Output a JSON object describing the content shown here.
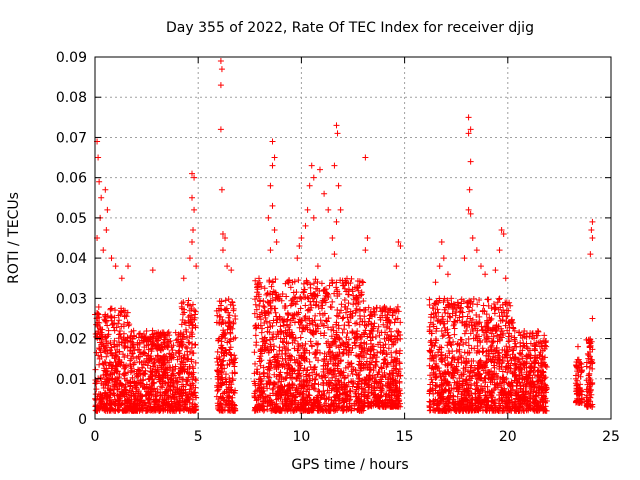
{
  "chart_data": {
    "type": "scatter",
    "title": "Day 355 of 2022, Rate Of TEC Index for receiver djig",
    "xlabel": "GPS time / hours",
    "ylabel": "ROTI / TECUs",
    "xlim": [
      0,
      25
    ],
    "ylim": [
      0,
      0.09
    ],
    "xticks": [
      0,
      5,
      10,
      15,
      20,
      25
    ],
    "xtick_labels": [
      "0",
      "5",
      "10",
      "15",
      "20",
      "25"
    ],
    "yticks": [
      0,
      0.01,
      0.02,
      0.03,
      0.04,
      0.05,
      0.06,
      0.07,
      0.08,
      0.09
    ],
    "ytick_labels": [
      "0",
      "0.01",
      "0.02",
      "0.03",
      "0.04",
      "0.05",
      "0.06",
      "0.07",
      "0.08",
      "0.09"
    ],
    "grid": true,
    "marker": "plus",
    "color": "#ff0000",
    "clusters": [
      {
        "x_range": [
          0.0,
          1.7
        ],
        "y_range": [
          0.002,
          0.028
        ]
      },
      {
        "x_range": [
          1.7,
          4.2
        ],
        "y_range": [
          0.002,
          0.022
        ]
      },
      {
        "x_range": [
          4.2,
          4.9
        ],
        "y_range": [
          0.002,
          0.03
        ]
      },
      {
        "x_range": [
          5.9,
          6.8
        ],
        "y_range": [
          0.002,
          0.03
        ]
      },
      {
        "x_range": [
          7.7,
          13.0
        ],
        "y_range": [
          0.002,
          0.035
        ]
      },
      {
        "x_range": [
          13.0,
          14.8
        ],
        "y_range": [
          0.003,
          0.028
        ]
      },
      {
        "x_range": [
          16.2,
          20.3
        ],
        "y_range": [
          0.002,
          0.03
        ]
      },
      {
        "x_range": [
          20.3,
          21.9
        ],
        "y_range": [
          0.002,
          0.022
        ]
      },
      {
        "x_range": [
          23.3,
          23.6
        ],
        "y_range": [
          0.004,
          0.015
        ]
      },
      {
        "x_range": [
          23.8,
          24.1
        ],
        "y_range": [
          0.003,
          0.02
        ]
      }
    ],
    "highlights": [
      {
        "x": 0.1,
        "y": 0.069
      },
      {
        "x": 0.15,
        "y": 0.065
      },
      {
        "x": 0.2,
        "y": 0.059
      },
      {
        "x": 0.3,
        "y": 0.055
      },
      {
        "x": 0.25,
        "y": 0.05
      },
      {
        "x": 0.1,
        "y": 0.045
      },
      {
        "x": 0.5,
        "y": 0.057
      },
      {
        "x": 0.6,
        "y": 0.052
      },
      {
        "x": 0.55,
        "y": 0.047
      },
      {
        "x": 0.8,
        "y": 0.04
      },
      {
        "x": 1.0,
        "y": 0.038
      },
      {
        "x": 0.4,
        "y": 0.042
      },
      {
        "x": 1.6,
        "y": 0.038
      },
      {
        "x": 1.3,
        "y": 0.035
      },
      {
        "x": 2.8,
        "y": 0.037
      },
      {
        "x": 4.7,
        "y": 0.061
      },
      {
        "x": 4.8,
        "y": 0.06
      },
      {
        "x": 4.7,
        "y": 0.055
      },
      {
        "x": 4.8,
        "y": 0.052
      },
      {
        "x": 4.75,
        "y": 0.047
      },
      {
        "x": 4.7,
        "y": 0.044
      },
      {
        "x": 4.6,
        "y": 0.04
      },
      {
        "x": 4.3,
        "y": 0.035
      },
      {
        "x": 4.9,
        "y": 0.038
      },
      {
        "x": 6.1,
        "y": 0.089
      },
      {
        "x": 6.15,
        "y": 0.087
      },
      {
        "x": 6.1,
        "y": 0.083
      },
      {
        "x": 6.1,
        "y": 0.072
      },
      {
        "x": 6.15,
        "y": 0.057
      },
      {
        "x": 6.2,
        "y": 0.046
      },
      {
        "x": 6.3,
        "y": 0.045
      },
      {
        "x": 6.2,
        "y": 0.042
      },
      {
        "x": 6.4,
        "y": 0.038
      },
      {
        "x": 6.6,
        "y": 0.037
      },
      {
        "x": 8.6,
        "y": 0.069
      },
      {
        "x": 8.7,
        "y": 0.065
      },
      {
        "x": 8.6,
        "y": 0.063
      },
      {
        "x": 8.5,
        "y": 0.058
      },
      {
        "x": 8.6,
        "y": 0.053
      },
      {
        "x": 8.4,
        "y": 0.05
      },
      {
        "x": 8.7,
        "y": 0.047
      },
      {
        "x": 8.8,
        "y": 0.044
      },
      {
        "x": 8.5,
        "y": 0.042
      },
      {
        "x": 10.5,
        "y": 0.063
      },
      {
        "x": 10.6,
        "y": 0.06
      },
      {
        "x": 10.4,
        "y": 0.058
      },
      {
        "x": 10.3,
        "y": 0.052
      },
      {
        "x": 10.6,
        "y": 0.05
      },
      {
        "x": 10.2,
        "y": 0.048
      },
      {
        "x": 10.0,
        "y": 0.045
      },
      {
        "x": 9.9,
        "y": 0.043
      },
      {
        "x": 9.8,
        "y": 0.04
      },
      {
        "x": 10.8,
        "y": 0.038
      },
      {
        "x": 10.9,
        "y": 0.062
      },
      {
        "x": 11.1,
        "y": 0.056
      },
      {
        "x": 11.3,
        "y": 0.052
      },
      {
        "x": 11.7,
        "y": 0.073
      },
      {
        "x": 11.75,
        "y": 0.071
      },
      {
        "x": 11.6,
        "y": 0.063
      },
      {
        "x": 11.8,
        "y": 0.058
      },
      {
        "x": 11.9,
        "y": 0.052
      },
      {
        "x": 11.7,
        "y": 0.049
      },
      {
        "x": 11.5,
        "y": 0.045
      },
      {
        "x": 11.6,
        "y": 0.041
      },
      {
        "x": 13.1,
        "y": 0.065
      },
      {
        "x": 13.2,
        "y": 0.045
      },
      {
        "x": 13.1,
        "y": 0.042
      },
      {
        "x": 14.7,
        "y": 0.044
      },
      {
        "x": 14.8,
        "y": 0.043
      },
      {
        "x": 14.6,
        "y": 0.038
      },
      {
        "x": 16.8,
        "y": 0.044
      },
      {
        "x": 16.9,
        "y": 0.04
      },
      {
        "x": 16.7,
        "y": 0.038
      },
      {
        "x": 17.1,
        "y": 0.036
      },
      {
        "x": 16.5,
        "y": 0.034
      },
      {
        "x": 18.1,
        "y": 0.075
      },
      {
        "x": 18.2,
        "y": 0.072
      },
      {
        "x": 18.1,
        "y": 0.071
      },
      {
        "x": 18.2,
        "y": 0.064
      },
      {
        "x": 18.15,
        "y": 0.057
      },
      {
        "x": 18.1,
        "y": 0.052
      },
      {
        "x": 18.2,
        "y": 0.051
      },
      {
        "x": 18.3,
        "y": 0.045
      },
      {
        "x": 18.5,
        "y": 0.042
      },
      {
        "x": 18.7,
        "y": 0.038
      },
      {
        "x": 17.9,
        "y": 0.04
      },
      {
        "x": 18.9,
        "y": 0.036
      },
      {
        "x": 19.7,
        "y": 0.047
      },
      {
        "x": 19.8,
        "y": 0.046
      },
      {
        "x": 19.6,
        "y": 0.042
      },
      {
        "x": 19.4,
        "y": 0.037
      },
      {
        "x": 19.9,
        "y": 0.035
      },
      {
        "x": 24.1,
        "y": 0.049
      },
      {
        "x": 24.05,
        "y": 0.047
      },
      {
        "x": 24.1,
        "y": 0.045
      },
      {
        "x": 24.0,
        "y": 0.041
      },
      {
        "x": 24.1,
        "y": 0.025
      },
      {
        "x": 23.4,
        "y": 0.018
      }
    ]
  }
}
